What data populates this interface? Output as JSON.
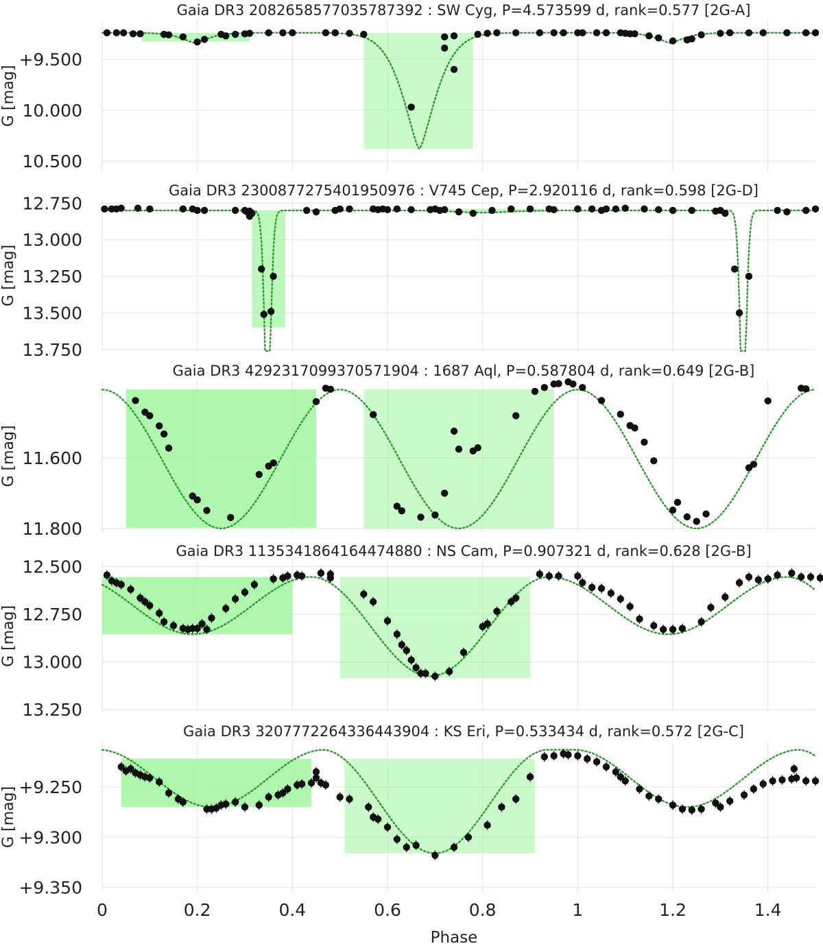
{
  "figure": {
    "xlabel": "Phase",
    "xticks": [
      0,
      0.2,
      0.4,
      0.6,
      0.8,
      1,
      1.2,
      1.4
    ],
    "xtick_labels": [
      "0",
      "0.2",
      "0.4",
      "0.6",
      "0.8",
      "1",
      "1.2",
      "1.4"
    ],
    "colors": {
      "curve": "#2e9a2e",
      "marker": "#111111",
      "highlight": "#a6f5a6",
      "grid": "#e6e6e6"
    }
  },
  "chart_data": [
    {
      "type": "scatter",
      "title": "Gaia DR3 2082658577035787392 : SW Cyg, P=4.573599 d, rank=0.577 [2G-A]",
      "ylabel": "G [mag]",
      "xlim": [
        0,
        1.5
      ],
      "ylim": [
        10.6,
        9.12
      ],
      "yticks": [
        9.5,
        10.0,
        10.5
      ],
      "ytick_labels": [
        "+9.500",
        "10.000",
        "10.500"
      ],
      "model": {
        "kind": "eclipses",
        "base": 9.24,
        "eclipses": [
          {
            "center": 0.667,
            "depth": 1.14,
            "width": 0.05,
            "shape": 1.4
          },
          {
            "center": 0.195,
            "depth": 0.1,
            "width": 0.04,
            "shape": 1.4
          }
        ]
      },
      "highlights": [
        {
          "x": [
            0.083,
            0.31
          ],
          "y": [
            9.24,
            9.325
          ],
          "opacity": 0.75
        },
        {
          "x": [
            0.55,
            0.78
          ],
          "y": [
            9.24,
            10.38
          ],
          "opacity": 0.6
        }
      ],
      "points": {
        "x": [
          0.01,
          0.03,
          0.045,
          0.065,
          0.08,
          0.13,
          0.14,
          0.17,
          0.2,
          0.215,
          0.26,
          0.28,
          0.3,
          0.31,
          0.35,
          0.38,
          0.4,
          0.47,
          0.49,
          0.55,
          0.72,
          0.74,
          0.79,
          0.81,
          0.83,
          0.87,
          0.95,
          0.97,
          1.0,
          1.01,
          1.04,
          1.06,
          1.09,
          1.1,
          1.12,
          1.15,
          1.17,
          1.2,
          1.24,
          1.26,
          1.3,
          1.32,
          1.36,
          1.39,
          1.44,
          1.48,
          1.5,
          0.25,
          0.52,
          1.23,
          1.11,
          0.92
        ],
        "y": [
          9.24,
          9.24,
          9.24,
          9.25,
          9.25,
          9.255,
          9.26,
          9.28,
          9.33,
          9.305,
          9.27,
          9.255,
          9.25,
          9.245,
          9.24,
          9.24,
          9.24,
          9.24,
          9.24,
          9.255,
          9.28,
          9.27,
          9.255,
          9.245,
          9.24,
          9.24,
          9.24,
          9.24,
          9.24,
          9.24,
          9.24,
          9.24,
          9.24,
          9.245,
          9.25,
          9.27,
          9.29,
          9.32,
          9.3,
          9.26,
          9.245,
          9.24,
          9.24,
          9.24,
          9.24,
          9.24,
          9.24,
          9.255,
          9.245,
          9.31,
          9.25,
          9.24
        ],
        "errors_visible": false
      },
      "extra_points": {
        "x": [
          0.65,
          0.74,
          0.72
        ],
        "y": [
          9.97,
          9.6,
          9.39
        ]
      }
    },
    {
      "type": "scatter",
      "title": "Gaia DR3 2300877275401950976 : V745 Cep, P=2.920116 d, rank=0.598 [2G-D]",
      "ylabel": "G [mag]",
      "xlim": [
        0,
        1.5
      ],
      "ylim": [
        13.76,
        12.73
      ],
      "yticks": [
        12.75,
        13.0,
        13.25,
        13.5,
        13.75
      ],
      "ytick_labels": [
        "12.750",
        "13.000",
        "13.250",
        "13.500",
        "13.750"
      ],
      "model": {
        "kind": "eclipses",
        "base": 12.8,
        "eclipses": [
          {
            "center": 0.348,
            "depth": 0.8,
            "width": 0.0085,
            "shape": 1.6
          },
          {
            "center": 1.348,
            "depth": 0.8,
            "width": 0.0085,
            "shape": 1.6
          },
          {
            "center": 0.8,
            "depth": 0.015,
            "width": 0.08,
            "shape": 2.0
          }
        ]
      },
      "highlights": [
        {
          "x": [
            0.315,
            0.385
          ],
          "y": [
            12.8,
            13.6
          ],
          "opacity": 0.75
        },
        {
          "x": [
            0.68,
            0.93
          ],
          "y": [
            12.81,
            12.79
          ],
          "opacity": 0.75
        }
      ],
      "points": {
        "x": [
          0.005,
          0.02,
          0.03,
          0.04,
          0.075,
          0.1,
          0.17,
          0.19,
          0.2,
          0.215,
          0.28,
          0.3,
          0.31,
          0.315,
          0.335,
          0.34,
          0.355,
          0.36,
          0.43,
          0.45,
          0.49,
          0.5,
          0.52,
          0.57,
          0.59,
          0.6,
          0.62,
          0.65,
          0.69,
          0.7,
          0.71,
          0.72,
          0.75,
          0.78,
          0.82,
          0.86,
          0.9,
          0.94,
          0.95,
          1.0,
          1.03,
          1.05,
          1.08,
          1.1,
          1.14,
          1.17,
          1.2,
          1.24,
          1.29,
          1.3,
          1.31,
          1.33,
          1.34,
          1.36,
          1.42,
          1.44,
          1.48,
          1.5,
          1.06,
          0.58
        ],
        "y": [
          12.79,
          12.79,
          12.79,
          12.785,
          12.785,
          12.79,
          12.79,
          12.79,
          12.8,
          12.8,
          12.8,
          12.8,
          12.805,
          12.82,
          13.2,
          13.51,
          13.49,
          13.25,
          12.8,
          12.81,
          12.8,
          12.79,
          12.79,
          12.79,
          12.79,
          12.795,
          12.79,
          12.795,
          12.795,
          12.79,
          12.8,
          12.795,
          12.81,
          12.82,
          12.8,
          12.79,
          12.79,
          12.79,
          12.795,
          12.79,
          12.79,
          12.8,
          12.79,
          12.785,
          12.79,
          12.795,
          12.8,
          12.8,
          12.805,
          12.8,
          12.82,
          13.2,
          13.5,
          13.25,
          12.8,
          12.81,
          12.8,
          12.79,
          12.79,
          12.795
        ],
        "errors_visible": false
      },
      "extra_points": {
        "x": [
          0.305,
          0.31
        ],
        "y": [
          12.81,
          12.84
        ]
      }
    },
    {
      "type": "scatter",
      "title": "Gaia DR3 4292317099370571904 : 1687 Aql, P=0.587804 d, rank=0.649 [2G-B]",
      "ylabel": "G [mag]",
      "xlim": [
        0,
        1.5
      ],
      "ylim": [
        11.81,
        11.38
      ],
      "yticks": [
        11.6,
        11.8
      ],
      "ytick_labels": [
        "11.600",
        "11.800"
      ],
      "model": {
        "kind": "cosine",
        "mean": 11.603,
        "amplitude": 0.197,
        "phase0": 0.0,
        "cycles_per_phase": 2
      },
      "highlights": [
        {
          "x": [
            0.05,
            0.45
          ],
          "y": [
            11.405,
            11.798
          ],
          "opacity": 0.9
        },
        {
          "x": [
            0.55,
            0.95
          ],
          "y": [
            11.405,
            11.8
          ],
          "opacity": 0.6
        }
      ],
      "points": {
        "x": [
          0.07,
          0.09,
          0.1,
          0.12,
          0.13,
          0.14,
          0.19,
          0.2,
          0.22,
          0.27,
          0.33,
          0.35,
          0.36,
          0.45,
          0.47,
          0.48,
          0.57,
          0.62,
          0.63,
          0.67,
          0.7,
          0.72,
          0.75,
          0.87,
          0.91,
          0.93,
          0.95,
          0.96,
          0.98,
          0.99,
          1.01,
          1.05,
          1.09,
          1.11,
          1.12,
          1.14,
          1.16,
          1.2,
          1.21,
          1.23,
          1.25,
          1.27,
          1.36,
          1.37,
          1.4,
          1.47,
          1.48,
          0.79
        ],
        "y": [
          11.437,
          11.47,
          11.48,
          11.509,
          11.532,
          11.572,
          11.708,
          11.719,
          11.749,
          11.769,
          11.647,
          11.623,
          11.614,
          11.44,
          11.402,
          11.405,
          11.477,
          11.737,
          11.75,
          11.768,
          11.762,
          11.7,
          11.575,
          11.48,
          11.411,
          11.4,
          11.39,
          11.389,
          11.384,
          11.39,
          11.4,
          11.437,
          11.476,
          11.508,
          11.515,
          11.555,
          11.608,
          11.748,
          11.726,
          11.767,
          11.78,
          11.759,
          11.628,
          11.618,
          11.438,
          11.402,
          11.404,
          11.571
        ],
        "errors_visible": false
      },
      "extra_points": {
        "x": [
          0.78,
          0.74
        ],
        "y": [
          11.58,
          11.524
        ]
      }
    },
    {
      "type": "scatter",
      "title": "Gaia DR3 1135341864164474880 : NS Cam, P=0.907321 d, rank=0.628 [2G-B]",
      "ylabel": "G [mag]",
      "xlim": [
        0,
        1.5
      ],
      "ylim": [
        13.26,
        12.47
      ],
      "yticks": [
        12.5,
        12.75,
        13.0,
        13.25
      ],
      "ytick_labels": [
        "12.500",
        "12.750",
        "13.000",
        "13.250"
      ],
      "model": {
        "kind": "two_minima",
        "base": 12.555,
        "p_depth": 0.52,
        "s_depth": 0.3,
        "p_center": 0.69,
        "s_center": 0.19,
        "width": 0.2
      },
      "highlights": [
        {
          "x": [
            0.0,
            0.4
          ],
          "y": [
            12.555,
            12.855
          ],
          "opacity": 0.9
        },
        {
          "x": [
            0.5,
            0.9
          ],
          "y": [
            12.555,
            13.085
          ],
          "opacity": 0.6
        }
      ],
      "points": {
        "x": [
          0.01,
          0.02,
          0.03,
          0.04,
          0.06,
          0.08,
          0.09,
          0.1,
          0.12,
          0.13,
          0.15,
          0.17,
          0.18,
          0.19,
          0.2,
          0.21,
          0.23,
          0.26,
          0.28,
          0.3,
          0.32,
          0.36,
          0.38,
          0.39,
          0.41,
          0.42,
          0.46,
          0.48,
          0.55,
          0.57,
          0.6,
          0.62,
          0.63,
          0.65,
          0.66,
          0.68,
          0.7,
          0.73,
          0.76,
          0.8,
          0.83,
          0.86,
          0.87,
          0.92,
          0.94,
          0.96,
          1.0,
          1.01,
          1.03,
          1.05,
          1.07,
          1.09,
          1.11,
          1.13,
          1.16,
          1.18,
          1.2,
          1.22,
          1.26,
          1.28,
          1.31,
          1.34,
          1.36,
          1.38,
          1.4,
          1.42,
          1.45,
          1.47,
          1.49,
          1.51,
          0.22,
          0.48
        ],
        "y": [
          12.545,
          12.575,
          12.585,
          12.595,
          12.62,
          12.665,
          12.685,
          12.705,
          12.745,
          12.79,
          12.81,
          12.825,
          12.83,
          12.825,
          12.825,
          12.8,
          12.77,
          12.72,
          12.67,
          12.635,
          12.595,
          12.565,
          12.56,
          12.55,
          12.545,
          12.55,
          12.535,
          12.54,
          12.645,
          12.685,
          12.785,
          12.855,
          12.91,
          12.99,
          13.03,
          13.06,
          13.075,
          13.05,
          12.95,
          12.815,
          12.735,
          12.685,
          12.665,
          12.54,
          12.55,
          12.55,
          12.55,
          12.585,
          12.61,
          12.615,
          12.64,
          12.67,
          12.71,
          12.775,
          12.81,
          12.83,
          12.83,
          12.825,
          12.79,
          12.715,
          12.66,
          12.585,
          12.555,
          12.57,
          12.565,
          12.545,
          12.535,
          12.555,
          12.555,
          12.56,
          12.83,
          12.56
        ],
        "errors_visible": true
      },
      "extra_points": {
        "x": [
          0.64,
          0.67,
          0.81
        ],
        "y": [
          12.94,
          13.06,
          12.8
        ]
      }
    },
    {
      "type": "scatter",
      "title": "Gaia DR3 3207772264336443904 : KS Eri, P=0.533434 d, rank=0.572 [2G-C]",
      "ylabel": "G [mag]",
      "xlim": [
        0,
        1.5
      ],
      "ylim": [
        9.355,
        9.205
      ],
      "yticks": [
        9.25,
        9.3,
        9.35
      ],
      "ytick_labels": [
        "+9.250",
        "+9.300",
        "+9.350"
      ],
      "model": {
        "kind": "two_minima",
        "base": 9.213,
        "p_depth": 0.103,
        "s_depth": 0.057,
        "p_center": 0.7,
        "s_center": 0.23,
        "width": 0.19,
        "skew": 0.02
      },
      "highlights": [
        {
          "x": [
            0.04,
            0.44
          ],
          "y": [
            9.222,
            9.27
          ],
          "opacity": 0.9
        },
        {
          "x": [
            0.51,
            0.91
          ],
          "y": [
            9.222,
            9.316
          ],
          "opacity": 0.6
        }
      ],
      "points": {
        "x": [
          0.04,
          0.05,
          0.06,
          0.07,
          0.08,
          0.09,
          0.1,
          0.12,
          0.14,
          0.16,
          0.17,
          0.22,
          0.23,
          0.24,
          0.25,
          0.26,
          0.28,
          0.3,
          0.33,
          0.35,
          0.37,
          0.38,
          0.39,
          0.41,
          0.42,
          0.44,
          0.45,
          0.46,
          0.47,
          0.5,
          0.52,
          0.56,
          0.57,
          0.58,
          0.6,
          0.64,
          0.7,
          0.74,
          0.77,
          0.81,
          0.84,
          0.87,
          0.9,
          0.93,
          0.95,
          0.97,
          0.98,
          1.0,
          1.02,
          1.04,
          1.06,
          1.08,
          1.09,
          1.1,
          1.13,
          1.15,
          1.17,
          1.2,
          1.22,
          1.24,
          1.26,
          1.29,
          1.3,
          1.32,
          1.35,
          1.37,
          1.39,
          1.41,
          1.43,
          1.45,
          1.46,
          1.48,
          1.5,
          0.62,
          0.66
        ],
        "y": [
          9.23,
          9.234,
          9.232,
          9.236,
          9.238,
          9.24,
          9.241,
          9.245,
          9.256,
          9.262,
          9.265,
          9.272,
          9.272,
          9.271,
          9.268,
          9.267,
          9.265,
          9.27,
          9.268,
          9.26,
          9.258,
          9.256,
          9.252,
          9.248,
          9.247,
          9.246,
          9.241,
          9.246,
          9.248,
          9.26,
          9.262,
          9.27,
          9.28,
          9.282,
          9.29,
          9.31,
          9.318,
          9.31,
          9.3,
          9.288,
          9.27,
          9.262,
          9.24,
          9.22,
          9.219,
          9.217,
          9.218,
          9.219,
          9.222,
          9.225,
          9.23,
          9.235,
          9.24,
          9.244,
          9.252,
          9.259,
          9.262,
          9.268,
          9.272,
          9.273,
          9.272,
          9.266,
          9.27,
          9.264,
          9.258,
          9.252,
          9.247,
          9.244,
          9.243,
          9.242,
          9.241,
          9.244,
          9.244,
          9.302,
          9.308
        ],
        "errors_visible": true
      },
      "extra_points": {
        "x": [
          0.45,
          1.455
        ],
        "y": [
          9.235,
          9.232
        ]
      }
    }
  ]
}
